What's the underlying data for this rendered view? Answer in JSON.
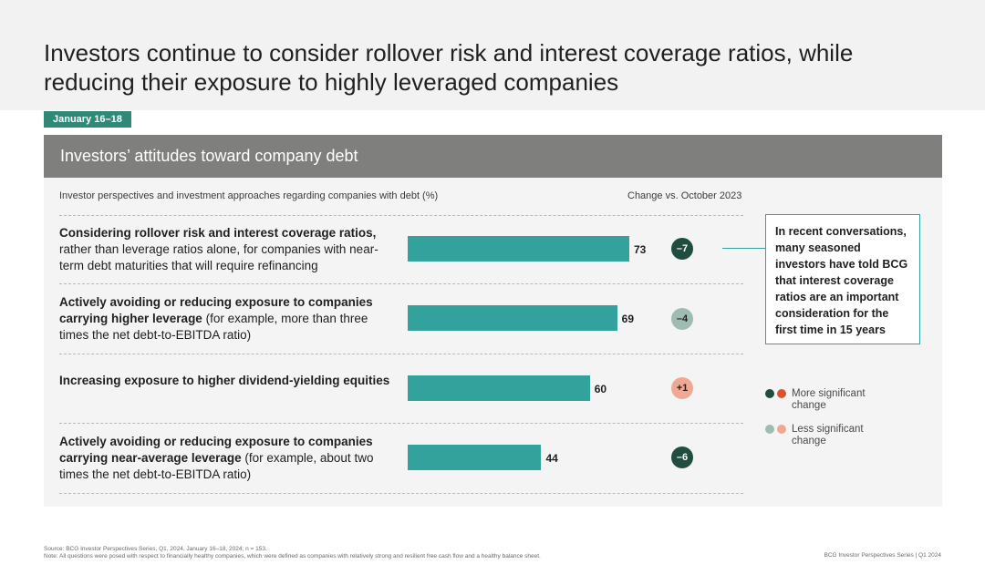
{
  "title": "Investors continue to consider rollover risk and interest coverage ratios, while reducing their exposure to highly leveraged companies",
  "date_tag": "January 16–18",
  "panel_title": "Investors’ attitudes toward company debt",
  "column_header_left": "Investor perspectives and investment approaches regarding companies with debt (%)",
  "column_header_right": "Change vs. October 2023",
  "colors": {
    "bar": "#33a19c",
    "more_significant_dark": "#1f4d3f",
    "more_significant_orange": "#d9542c",
    "less_significant_teal": "#9fbcb3",
    "less_significant_peach": "#f0a892"
  },
  "chart_data": {
    "type": "bar",
    "orientation": "horizontal",
    "xlim": [
      0,
      100
    ],
    "categories": [
      {
        "bold": "Considering rollover risk and interest coverage ratios,",
        "regular": " rather than leverage ratios alone, for companies with near-term debt maturities that will require refinancing"
      },
      {
        "bold": "Actively avoiding or reducing exposure to companies carrying higher leverage",
        "regular": " (for example, more than three times the net debt-to-EBITDA ratio)"
      },
      {
        "bold": "Increasing exposure to higher dividend-yielding equities",
        "regular": ""
      },
      {
        "bold": "Actively avoiding or reducing exposure to companies carrying near-average leverage",
        "regular": " (for example, about two times the net debt-to-EBITDA ratio)"
      }
    ],
    "values": [
      73,
      69,
      60,
      44
    ],
    "changes": [
      {
        "label": "–7",
        "value": -7,
        "significance": "more"
      },
      {
        "label": "–4",
        "value": -4,
        "significance": "less"
      },
      {
        "label": "+1",
        "value": 1,
        "significance": "less"
      },
      {
        "label": "–6",
        "value": -6,
        "significance": "more"
      }
    ]
  },
  "callout": "In recent conversations, many seasoned investors have told BCG that interest coverage ratios are an important consideration for the first time in 15 years",
  "legend": {
    "more": "More significant change",
    "less": "Less significant change"
  },
  "source": "Source: BCG Investor Perspectives Series, Q1, 2024, January 16–18, 2024; n = 153.",
  "note": "Note: All questions were posed with respect to financially healthy companies, which were defined as companies with relatively strong and resilient free cash flow and a healthy balance sheet.",
  "footer": "BCG Investor Perspectives Series | Q1 2024"
}
